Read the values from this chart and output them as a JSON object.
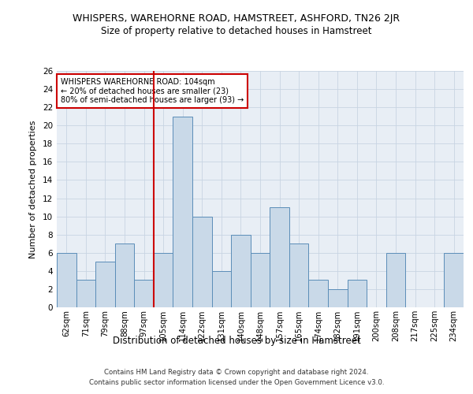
{
  "title1": "WHISPERS, WAREHORNE ROAD, HAMSTREET, ASHFORD, TN26 2JR",
  "title2": "Size of property relative to detached houses in Hamstreet",
  "xlabel": "Distribution of detached houses by size in Hamstreet",
  "ylabel": "Number of detached properties",
  "categories": [
    "62sqm",
    "71sqm",
    "79sqm",
    "88sqm",
    "97sqm",
    "105sqm",
    "114sqm",
    "122sqm",
    "131sqm",
    "140sqm",
    "148sqm",
    "157sqm",
    "165sqm",
    "174sqm",
    "182sqm",
    "191sqm",
    "200sqm",
    "208sqm",
    "217sqm",
    "225sqm",
    "234sqm"
  ],
  "values": [
    6,
    3,
    5,
    7,
    3,
    6,
    21,
    10,
    4,
    8,
    6,
    11,
    7,
    3,
    2,
    3,
    0,
    6,
    0,
    0,
    6
  ],
  "bar_color": "#c9d9e8",
  "bar_edge_color": "#5b8db8",
  "vline_index": 4.5,
  "marker_line1": "WHISPERS WAREHORNE ROAD: 104sqm",
  "marker_line2": "← 20% of detached houses are smaller (23)",
  "marker_line3": "80% of semi-detached houses are larger (93) →",
  "vline_color": "#cc0000",
  "annotation_box_edge": "#cc0000",
  "ylim": [
    0,
    26
  ],
  "yticks": [
    0,
    2,
    4,
    6,
    8,
    10,
    12,
    14,
    16,
    18,
    20,
    22,
    24,
    26
  ],
  "grid_color": "#c8d4e3",
  "background_color": "#e8eef5",
  "footer1": "Contains HM Land Registry data © Crown copyright and database right 2024.",
  "footer2": "Contains public sector information licensed under the Open Government Licence v3.0."
}
